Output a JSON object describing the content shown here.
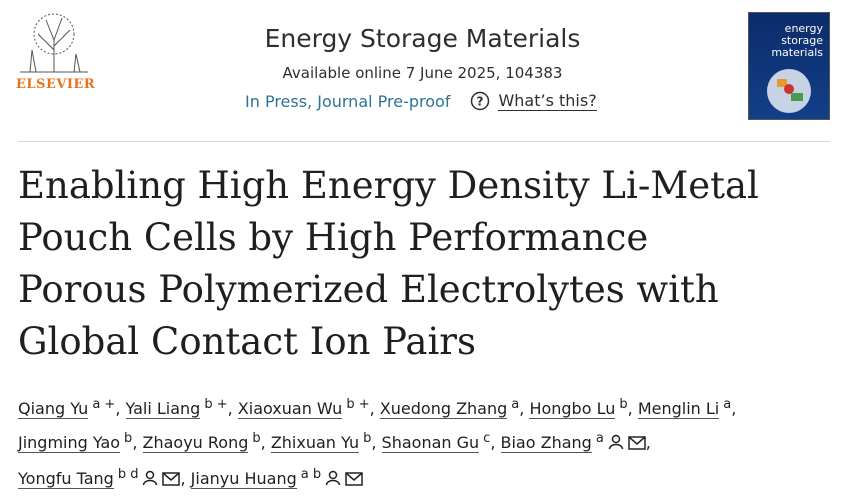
{
  "header": {
    "publisher": "ELSEVIER",
    "journal": "Energy Storage Materials",
    "available": "Available online 7 June 2025, 104383",
    "status": "In Press, Journal Pre-proof",
    "help": "What’s this?",
    "cover": {
      "line1": "energy",
      "line2": "storage",
      "line3": "materials"
    }
  },
  "article": {
    "title": "Enabling High Energy Density Li-Metal Pouch Cells by High Performance Porous Polymerized Electrolytes with Global Contact Ion Pairs",
    "separator": ",",
    "authors": [
      {
        "name": "Qiang Yu",
        "sup": "a +"
      },
      {
        "name": "Yali Liang",
        "sup": "b +"
      },
      {
        "name": "Xiaoxuan Wu",
        "sup": "b +"
      },
      {
        "name": "Xuedong Zhang",
        "sup": "a"
      },
      {
        "name": "Hongbo Lu",
        "sup": "b"
      },
      {
        "name": "Menglin Li",
        "sup": "a"
      },
      {
        "name": "Jingming Yao",
        "sup": "b"
      },
      {
        "name": "Zhaoyu Rong",
        "sup": "b"
      },
      {
        "name": "Zhixuan Yu",
        "sup": "b"
      },
      {
        "name": "Shaonan Gu",
        "sup": "c"
      },
      {
        "name": "Biao Zhang",
        "sup": "a",
        "corresponding": true
      },
      {
        "name": "Yongfu Tang",
        "sup": "b d",
        "corresponding": true
      },
      {
        "name": "Jianyu Huang",
        "sup": "a b",
        "corresponding": true
      }
    ]
  }
}
